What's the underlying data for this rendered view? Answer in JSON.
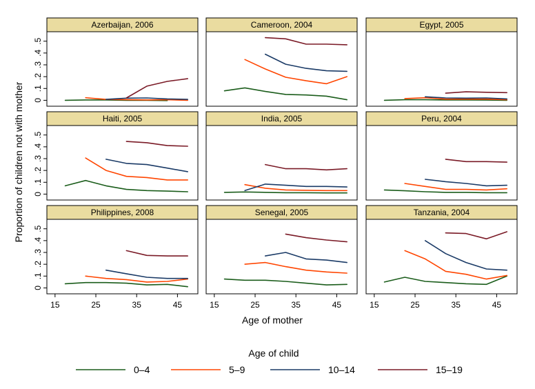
{
  "chart_data": {
    "type": "line",
    "ylabel": "Proportion of children not with mother",
    "xlabel": "Age of mother",
    "legend_title": "Age of child",
    "legend_position": "bottom",
    "xlim": [
      13,
      50
    ],
    "ylim": [
      -0.05,
      0.58
    ],
    "x_ticks": [
      15,
      25,
      35,
      45
    ],
    "x_tick_labels": [
      "15",
      "25",
      "35",
      "45"
    ],
    "y_ticks": [
      0,
      0.1,
      0.2,
      0.3,
      0.4,
      0.5
    ],
    "y_tick_labels": [
      "0",
      ".1",
      ".2",
      ".3",
      ".4",
      ".5"
    ],
    "series_styles": [
      {
        "name": "0–4",
        "color": "#1a5c1a"
      },
      {
        "name": "5–9",
        "color": "#ff4500"
      },
      {
        "name": "10–14",
        "color": "#1a3a66"
      },
      {
        "name": "15–19",
        "color": "#7a1a26"
      }
    ],
    "panels": [
      {
        "title": "Azerbaijan, 2006",
        "series": [
          {
            "name": "0–4",
            "x": [
              17.5,
              22.5,
              27.5,
              32.5,
              37.5,
              42.5
            ],
            "values": [
              0.0,
              0.003,
              0.003,
              0.0,
              0.0,
              -0.002
            ]
          },
          {
            "name": "5–9",
            "x": [
              22.5,
              27.5,
              32.5,
              37.5,
              42.5,
              47.5
            ],
            "values": [
              0.022,
              0.008,
              0.005,
              0.003,
              0.005,
              0.0
            ]
          },
          {
            "name": "10–14",
            "x": [
              27.5,
              32.5,
              37.5,
              42.5,
              47.5
            ],
            "values": [
              0.008,
              0.018,
              0.02,
              0.012,
              0.008
            ]
          },
          {
            "name": "15–19",
            "x": [
              32.5,
              37.5,
              42.5,
              47.5
            ],
            "values": [
              0.02,
              0.12,
              0.16,
              0.183
            ]
          }
        ]
      },
      {
        "title": "Cameroon, 2004",
        "series": [
          {
            "name": "0–4",
            "x": [
              17.5,
              22.5,
              27.5,
              32.5,
              37.5,
              42.5,
              47.5
            ],
            "values": [
              0.08,
              0.105,
              0.075,
              0.05,
              0.045,
              0.035,
              0.005
            ]
          },
          {
            "name": "5–9",
            "x": [
              22.5,
              27.5,
              32.5,
              37.5,
              42.5,
              47.5
            ],
            "values": [
              0.345,
              0.265,
              0.195,
              0.165,
              0.14,
              0.2
            ]
          },
          {
            "name": "10–14",
            "x": [
              27.5,
              32.5,
              37.5,
              42.5,
              47.5
            ],
            "values": [
              0.39,
              0.305,
              0.27,
              0.25,
              0.245
            ]
          },
          {
            "name": "15–19",
            "x": [
              27.5,
              32.5,
              37.5,
              42.5,
              47.5
            ],
            "values": [
              0.53,
              0.52,
              0.475,
              0.475,
              0.47
            ]
          }
        ]
      },
      {
        "title": "Egypt, 2005",
        "series": [
          {
            "name": "0–4",
            "x": [
              17.5,
              22.5,
              27.5,
              32.5,
              37.5,
              42.5,
              47.5
            ],
            "values": [
              0.0,
              0.005,
              0.005,
              0.003,
              0.003,
              0.002,
              0.0
            ]
          },
          {
            "name": "5–9",
            "x": [
              22.5,
              27.5,
              32.5,
              37.5,
              42.5,
              47.5
            ],
            "values": [
              0.015,
              0.022,
              0.01,
              0.01,
              0.01,
              0.005
            ]
          },
          {
            "name": "10–14",
            "x": [
              27.5,
              32.5,
              37.5,
              42.5,
              47.5
            ],
            "values": [
              0.03,
              0.02,
              0.018,
              0.02,
              0.012
            ]
          },
          {
            "name": "15–19",
            "x": [
              32.5,
              37.5,
              42.5,
              47.5
            ],
            "values": [
              0.06,
              0.072,
              0.068,
              0.065
            ]
          }
        ]
      },
      {
        "title": "Haiti, 2005",
        "series": [
          {
            "name": "0–4",
            "x": [
              17.5,
              22.5,
              27.5,
              32.5,
              37.5,
              42.5,
              47.5
            ],
            "values": [
              0.07,
              0.115,
              0.07,
              0.04,
              0.03,
              0.025,
              0.02
            ]
          },
          {
            "name": "5–9",
            "x": [
              22.5,
              27.5,
              32.5,
              37.5,
              42.5,
              47.5
            ],
            "values": [
              0.305,
              0.2,
              0.15,
              0.14,
              0.12,
              0.12
            ]
          },
          {
            "name": "10–14",
            "x": [
              27.5,
              32.5,
              37.5,
              42.5,
              47.5
            ],
            "values": [
              0.295,
              0.26,
              0.25,
              0.22,
              0.19
            ]
          },
          {
            "name": "15–19",
            "x": [
              32.5,
              37.5,
              42.5,
              47.5
            ],
            "values": [
              0.445,
              0.435,
              0.41,
              0.405
            ]
          }
        ]
      },
      {
        "title": "India, 2005",
        "series": [
          {
            "name": "0–4",
            "x": [
              17.5,
              22.5,
              27.5,
              32.5,
              37.5,
              42.5,
              47.5
            ],
            "values": [
              0.015,
              0.018,
              0.015,
              0.012,
              0.012,
              0.01,
              0.01
            ]
          },
          {
            "name": "5–9",
            "x": [
              22.5,
              27.5,
              32.5,
              37.5,
              42.5,
              47.5
            ],
            "values": [
              0.08,
              0.05,
              0.035,
              0.032,
              0.03,
              0.03
            ]
          },
          {
            "name": "10–14",
            "x": [
              22.5,
              27.5,
              32.5,
              37.5,
              42.5,
              47.5
            ],
            "values": [
              0.03,
              0.085,
              0.075,
              0.065,
              0.065,
              0.06
            ]
          },
          {
            "name": "15–19",
            "x": [
              27.5,
              32.5,
              37.5,
              42.5,
              47.5
            ],
            "values": [
              0.25,
              0.215,
              0.215,
              0.205,
              0.215
            ]
          }
        ]
      },
      {
        "title": "Peru, 2004",
        "series": [
          {
            "name": "0–4",
            "x": [
              17.5,
              22.5,
              27.5,
              32.5,
              37.5,
              42.5,
              47.5
            ],
            "values": [
              0.035,
              0.028,
              0.02,
              0.015,
              0.015,
              0.012,
              0.012
            ]
          },
          {
            "name": "5–9",
            "x": [
              22.5,
              27.5,
              32.5,
              37.5,
              42.5,
              47.5
            ],
            "values": [
              0.09,
              0.065,
              0.04,
              0.04,
              0.035,
              0.045
            ]
          },
          {
            "name": "10–14",
            "x": [
              27.5,
              32.5,
              37.5,
              42.5,
              47.5
            ],
            "values": [
              0.125,
              0.105,
              0.09,
              0.07,
              0.075
            ]
          },
          {
            "name": "15–19",
            "x": [
              32.5,
              37.5,
              42.5,
              47.5
            ],
            "values": [
              0.295,
              0.275,
              0.275,
              0.27
            ]
          }
        ]
      },
      {
        "title": "Philippines, 2008",
        "series": [
          {
            "name": "0–4",
            "x": [
              17.5,
              22.5,
              27.5,
              32.5,
              37.5,
              42.5,
              47.5
            ],
            "values": [
              0.035,
              0.045,
              0.045,
              0.04,
              0.025,
              0.03,
              0.01
            ]
          },
          {
            "name": "5–9",
            "x": [
              22.5,
              27.5,
              32.5,
              37.5,
              42.5,
              47.5
            ],
            "values": [
              0.1,
              0.08,
              0.07,
              0.05,
              0.055,
              0.075
            ]
          },
          {
            "name": "10–14",
            "x": [
              27.5,
              32.5,
              37.5,
              42.5,
              47.5
            ],
            "values": [
              0.15,
              0.12,
              0.09,
              0.08,
              0.08
            ]
          },
          {
            "name": "15–19",
            "x": [
              32.5,
              37.5,
              42.5,
              47.5
            ],
            "values": [
              0.315,
              0.275,
              0.27,
              0.27
            ]
          }
        ]
      },
      {
        "title": "Senegal, 2005",
        "series": [
          {
            "name": "0–4",
            "x": [
              17.5,
              22.5,
              27.5,
              32.5,
              37.5,
              42.5,
              47.5
            ],
            "values": [
              0.075,
              0.065,
              0.065,
              0.055,
              0.04,
              0.025,
              0.03
            ]
          },
          {
            "name": "5–9",
            "x": [
              22.5,
              27.5,
              32.5,
              37.5,
              42.5,
              47.5
            ],
            "values": [
              0.2,
              0.215,
              0.18,
              0.15,
              0.135,
              0.125
            ]
          },
          {
            "name": "10–14",
            "x": [
              27.5,
              32.5,
              37.5,
              42.5,
              47.5
            ],
            "values": [
              0.27,
              0.3,
              0.245,
              0.235,
              0.215
            ]
          },
          {
            "name": "15–19",
            "x": [
              32.5,
              37.5,
              42.5,
              47.5
            ],
            "values": [
              0.455,
              0.425,
              0.405,
              0.39
            ]
          }
        ]
      },
      {
        "title": "Tanzania, 2004",
        "series": [
          {
            "name": "0–4",
            "x": [
              17.5,
              22.5,
              27.5,
              32.5,
              37.5,
              42.5,
              47.5
            ],
            "values": [
              0.05,
              0.09,
              0.055,
              0.045,
              0.035,
              0.03,
              0.1
            ]
          },
          {
            "name": "5–9",
            "x": [
              22.5,
              27.5,
              32.5,
              37.5,
              42.5,
              47.5
            ],
            "values": [
              0.315,
              0.245,
              0.14,
              0.115,
              0.075,
              0.105
            ]
          },
          {
            "name": "10–14",
            "x": [
              27.5,
              32.5,
              37.5,
              42.5,
              47.5
            ],
            "values": [
              0.4,
              0.29,
              0.215,
              0.16,
              0.15
            ]
          },
          {
            "name": "15–19",
            "x": [
              32.5,
              37.5,
              42.5,
              47.5
            ],
            "values": [
              0.465,
              0.46,
              0.415,
              0.475
            ]
          }
        ]
      }
    ]
  }
}
